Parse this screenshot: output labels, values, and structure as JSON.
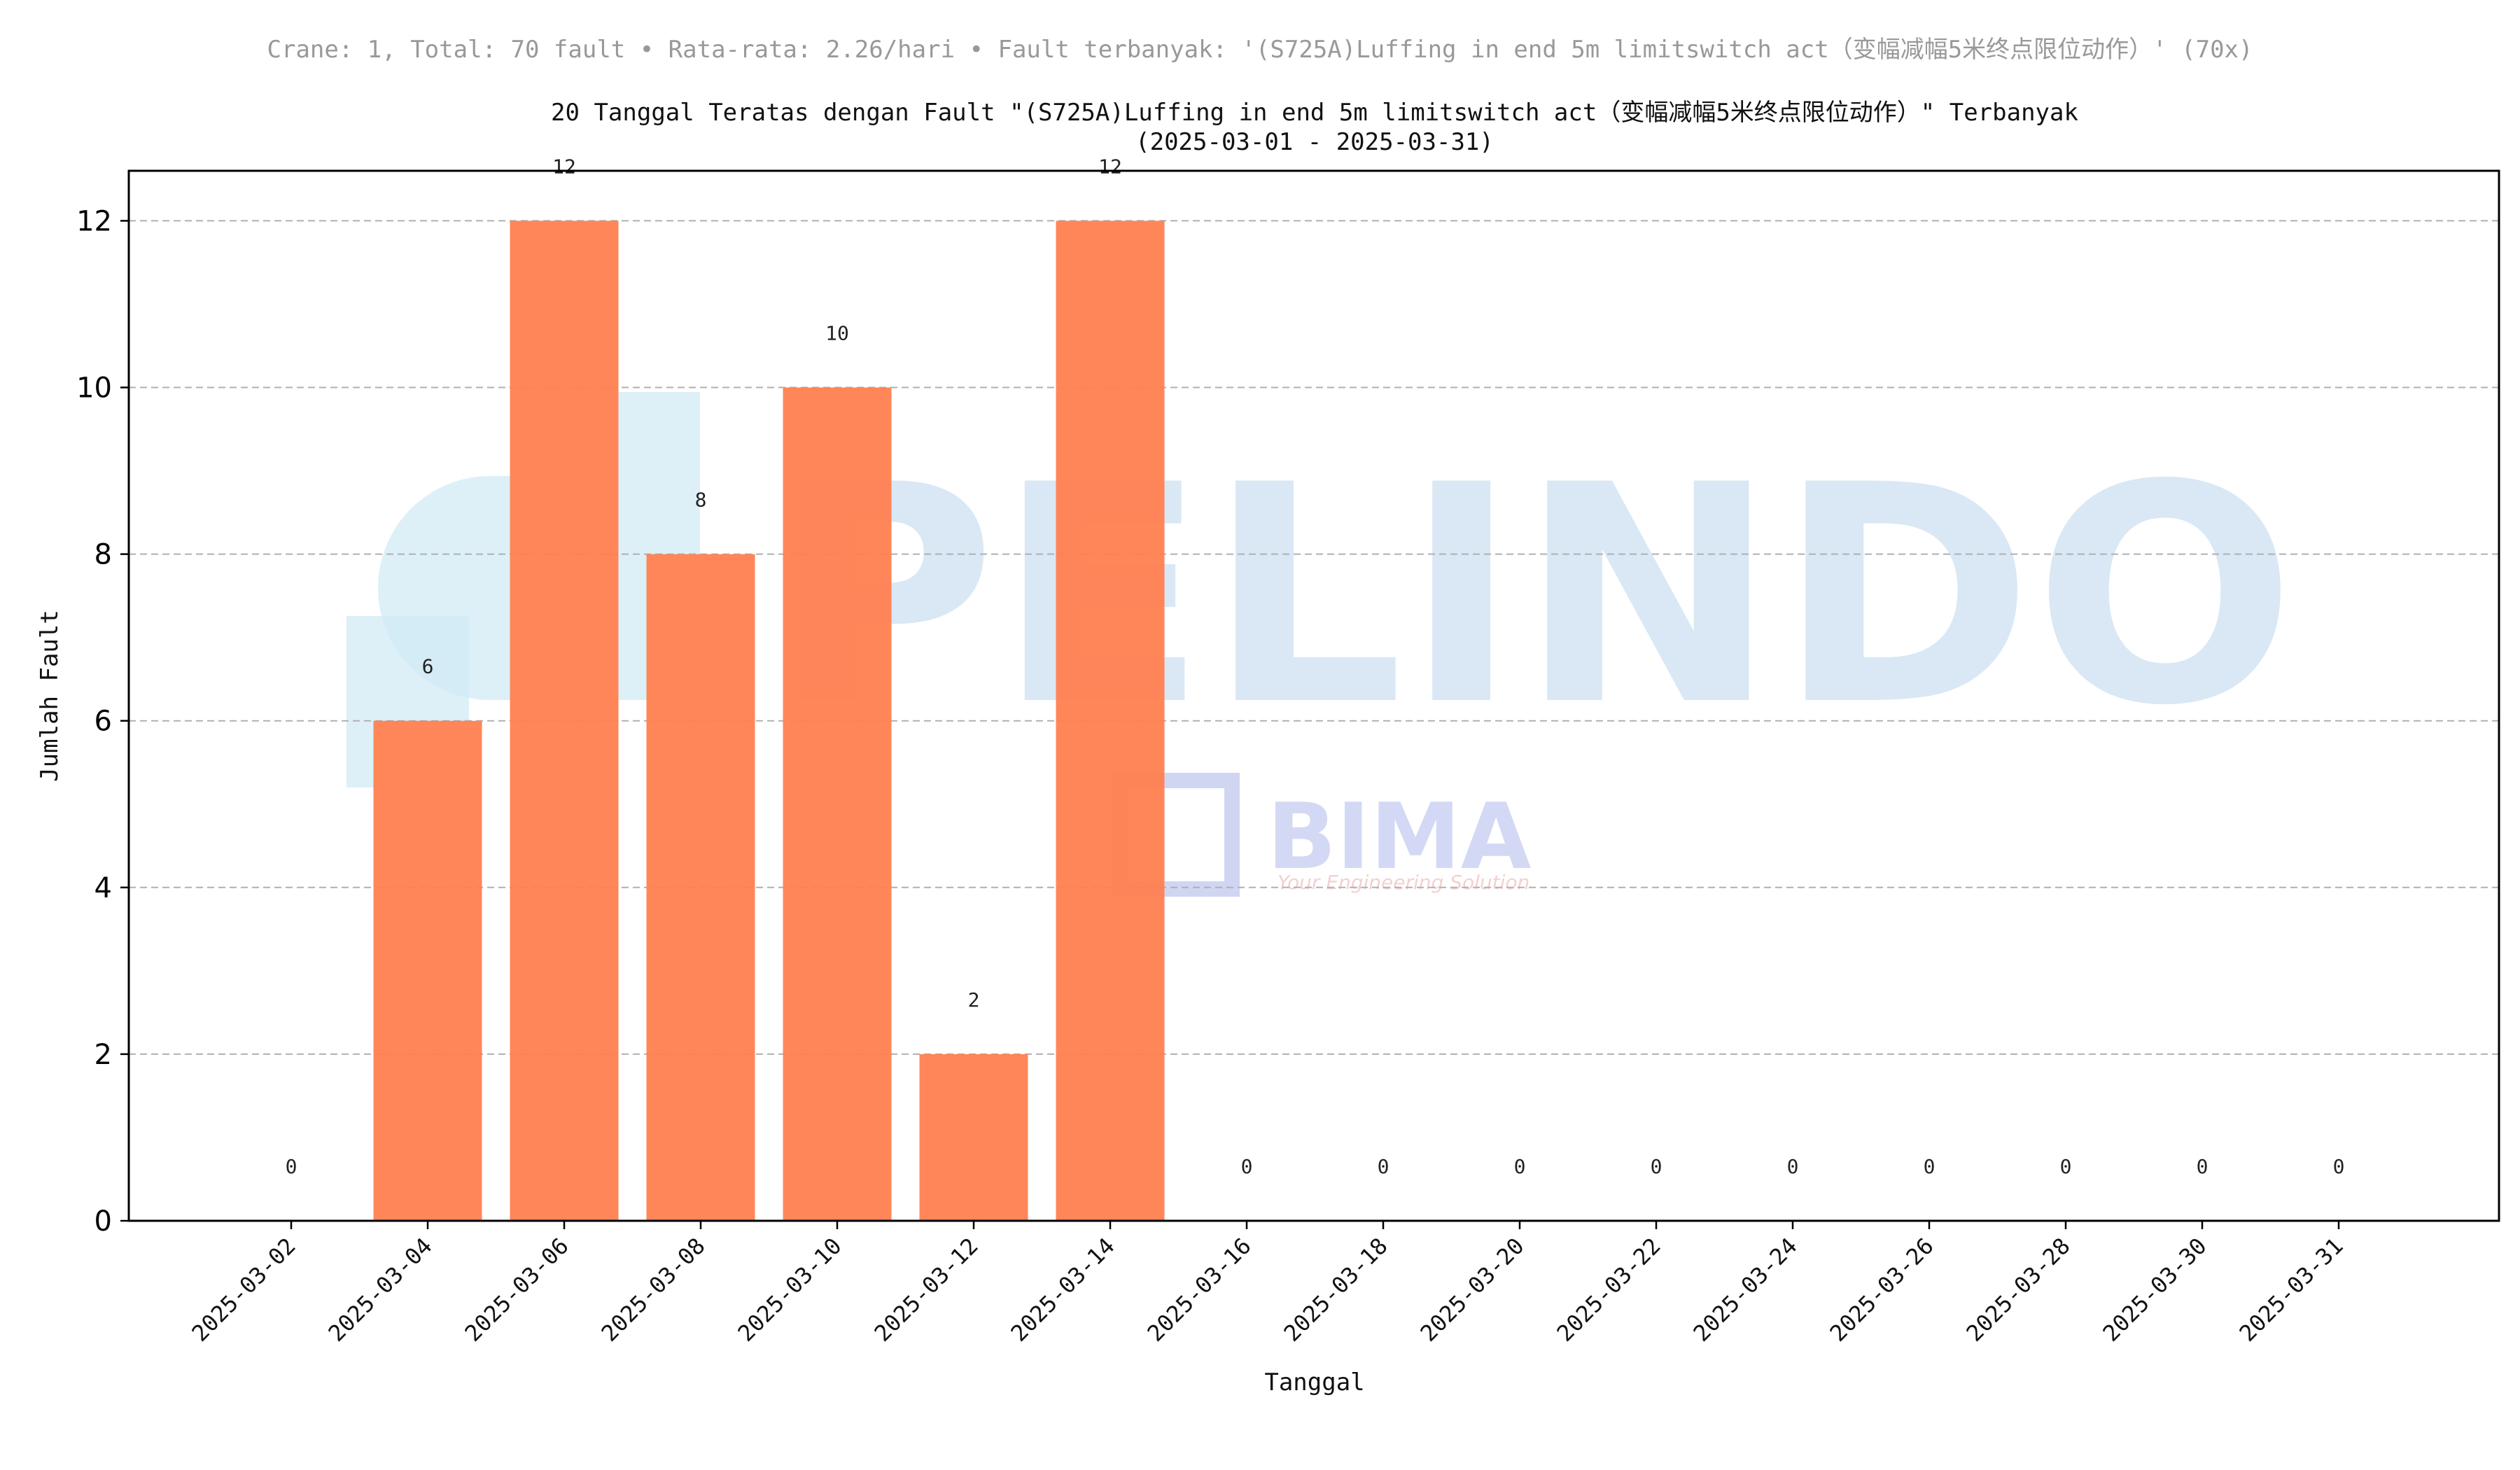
{
  "header": {
    "summary": "Crane: 1, Total: 70 fault • Rata-rata: 2.26/hari • Fault terbanyak: '(S725A)Luffing in end 5m limitswitch act（变幅减幅5米终点限位动作）' (70x)"
  },
  "watermark": {
    "brand": "PELINDO",
    "partner": "BIMA",
    "tagline": "Your Engineering Solution"
  },
  "chart_data": {
    "type": "bar",
    "title": "20 Tanggal Teratas dengan Fault \"(S725A)Luffing in end 5m limitswitch act（变幅减幅5米终点限位动作）\" Terbanyak",
    "subtitle": "(2025-03-01 - 2025-03-31)",
    "xlabel": "Tanggal",
    "ylabel": "Jumlah Fault",
    "categories": [
      "2025-03-02",
      "2025-03-04",
      "2025-03-06",
      "2025-03-08",
      "2025-03-10",
      "2025-03-12",
      "2025-03-14",
      "2025-03-16",
      "2025-03-18",
      "2025-03-20",
      "2025-03-22",
      "2025-03-24",
      "2025-03-26",
      "2025-03-28",
      "2025-03-30",
      "2025-03-31"
    ],
    "values": [
      0,
      6,
      12,
      8,
      10,
      2,
      12,
      0,
      0,
      0,
      0,
      0,
      0,
      0,
      0,
      0
    ],
    "ylim": [
      0,
      12.6
    ],
    "yticks": [
      0,
      2,
      4,
      6,
      8,
      10,
      12
    ],
    "grid": "horizontal dashed",
    "bar_color": "#ff7f50",
    "grid_color": "#b0b0b0",
    "data_labels": true
  }
}
